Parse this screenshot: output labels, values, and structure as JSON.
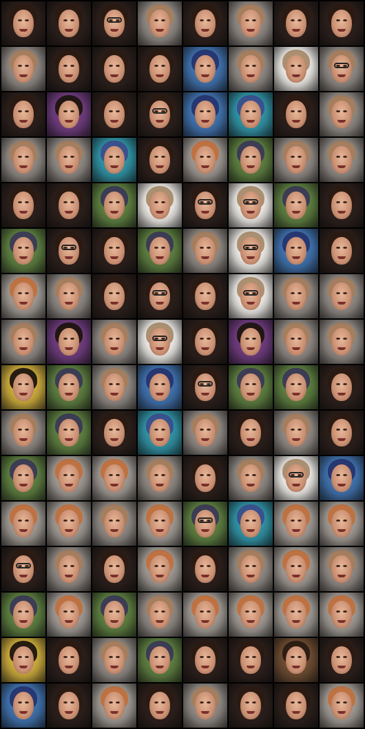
{
  "grid": {
    "columns": 8,
    "rows": 16
  },
  "palette": {
    "dark": {
      "bg": "#2a1e1a",
      "hair": "#2b1a12"
    },
    "gray": {
      "bg": "#8b8580",
      "hair": "#a57d5c"
    },
    "ginger": {
      "bg": "#9a948e",
      "hair": "#c0703e"
    },
    "yellow": {
      "bg": "#c6a63a",
      "hair": "#1e140e"
    },
    "blue": {
      "bg": "#3e6ea8",
      "hair": "#26346e"
    },
    "green": {
      "bg": "#5a7a3e",
      "hair": "#3b3a55"
    },
    "white": {
      "bg": "#e4e2de",
      "hair": "#a88a6a"
    },
    "teal": {
      "bg": "#2f8ea0",
      "hair": "#3a4f8c"
    },
    "purple": {
      "bg": "#6b3a7a",
      "hair": "#1e140e"
    },
    "brownbg": {
      "bg": "#6a4a30",
      "hair": "#2b1a12"
    }
  },
  "tiles": [
    [
      "dark",
      "dark",
      "dark",
      "gray",
      "dark",
      "gray",
      "dark",
      "dark"
    ],
    [
      "gray",
      "dark",
      "dark",
      "dark",
      "blue",
      "gray",
      "white",
      "gray"
    ],
    [
      "dark",
      "purple",
      "dark",
      "dark",
      "blue",
      "teal",
      "dark",
      "gray"
    ],
    [
      "gray",
      "gray",
      "teal",
      "dark",
      "ginger",
      "green",
      "gray",
      "gray"
    ],
    [
      "dark",
      "dark",
      "green",
      "white",
      "dark",
      "white",
      "green",
      "dark"
    ],
    [
      "green",
      "dark",
      "dark",
      "green",
      "gray",
      "white",
      "blue",
      "dark"
    ],
    [
      "ginger",
      "gray",
      "dark",
      "dark",
      "dark",
      "white",
      "gray",
      "gray"
    ],
    [
      "gray",
      "purple",
      "gray",
      "white",
      "dark",
      "purple",
      "gray",
      "gray"
    ],
    [
      "yellow",
      "green",
      "gray",
      "blue",
      "dark",
      "green",
      "green",
      "dark"
    ],
    [
      "gray",
      "green",
      "dark",
      "teal",
      "gray",
      "dark",
      "gray",
      "dark"
    ],
    [
      "green",
      "ginger",
      "ginger",
      "gray",
      "dark",
      "gray",
      "white",
      "blue"
    ],
    [
      "ginger",
      "ginger",
      "gray",
      "ginger",
      "green",
      "teal",
      "ginger",
      "ginger"
    ],
    [
      "dark",
      "gray",
      "dark",
      "ginger",
      "dark",
      "gray",
      "ginger",
      "gray"
    ],
    [
      "green",
      "ginger",
      "green",
      "gray",
      "ginger",
      "ginger",
      "ginger",
      "ginger"
    ],
    [
      "yellow",
      "dark",
      "gray",
      "green",
      "dark",
      "dark",
      "brownbg",
      "dark"
    ],
    [
      "blue",
      "dark",
      "ginger",
      "dark",
      "gray",
      "dark",
      "dark",
      "ginger"
    ]
  ],
  "glasses": [
    [
      0,
      2
    ],
    [
      1,
      7
    ],
    [
      2,
      3
    ],
    [
      4,
      4
    ],
    [
      4,
      5
    ],
    [
      5,
      1
    ],
    [
      5,
      5
    ],
    [
      6,
      3
    ],
    [
      6,
      5
    ],
    [
      7,
      3
    ],
    [
      8,
      4
    ],
    [
      10,
      6
    ],
    [
      11,
      4
    ],
    [
      12,
      0
    ]
  ]
}
